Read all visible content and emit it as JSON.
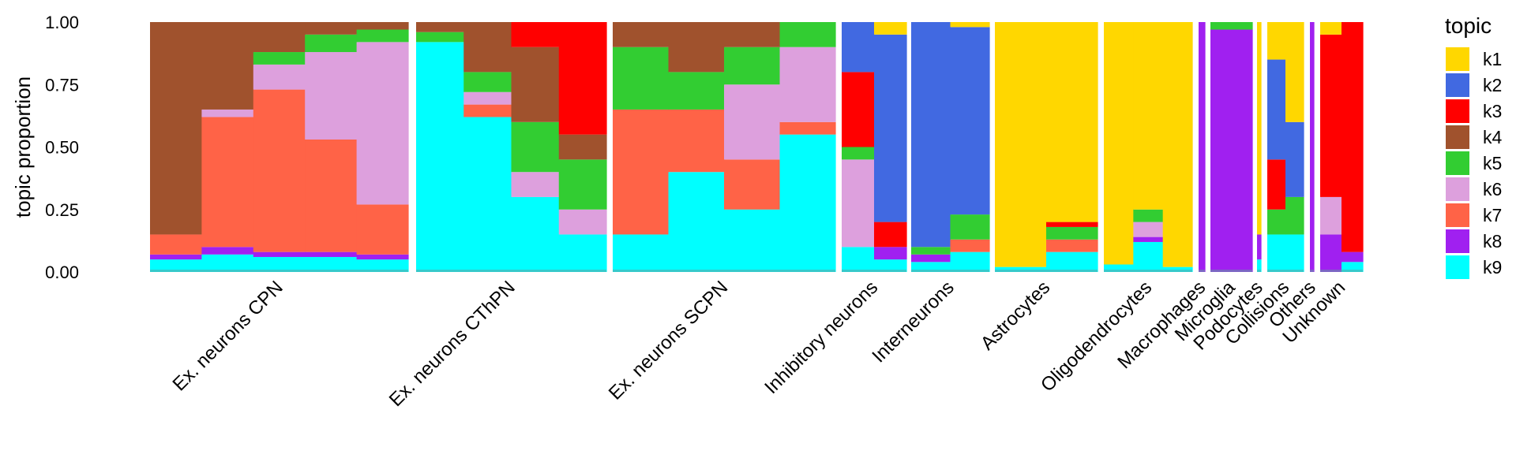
{
  "chart_data": {
    "type": "stacked-bar",
    "title": "",
    "xlabel": "",
    "ylabel": "topic proportion",
    "ylim": [
      0,
      1
    ],
    "yticks": [
      "0.00",
      "0.25",
      "0.50",
      "0.75",
      "1.00"
    ],
    "legend_title": "topic",
    "legend_position": "right",
    "series": [
      {
        "name": "k1",
        "color": "#FFD700"
      },
      {
        "name": "k2",
        "color": "#4169E1"
      },
      {
        "name": "k3",
        "color": "#FF0000"
      },
      {
        "name": "k4",
        "color": "#A0522D"
      },
      {
        "name": "k5",
        "color": "#32CD32"
      },
      {
        "name": "k6",
        "color": "#DDA0DD"
      },
      {
        "name": "k7",
        "color": "#FF6347"
      },
      {
        "name": "k8",
        "color": "#A020F0"
      },
      {
        "name": "k9",
        "color": "#00FFFF"
      }
    ],
    "groups": [
      {
        "label": "Ex. neurons CPN",
        "segments": [
          {
            "k4": 0.85,
            "k7": 0.08,
            "k9": 0.05,
            "k8": 0.02
          },
          {
            "k4": 0.35,
            "k7": 0.52,
            "k9": 0.07,
            "k8": 0.03,
            "k6": 0.03
          },
          {
            "k4": 0.12,
            "k7": 0.65,
            "k6": 0.1,
            "k5": 0.05,
            "k9": 0.06,
            "k8": 0.02
          },
          {
            "k4": 0.05,
            "k7": 0.45,
            "k6": 0.35,
            "k5": 0.07,
            "k9": 0.06,
            "k8": 0.02
          },
          {
            "k4": 0.03,
            "k7": 0.2,
            "k6": 0.65,
            "k5": 0.05,
            "k9": 0.05,
            "k8": 0.02
          }
        ]
      },
      {
        "label": "Ex. neurons CThPN",
        "segments": [
          {
            "k9": 0.92,
            "k4": 0.04,
            "k5": 0.04
          },
          {
            "k9": 0.62,
            "k4": 0.2,
            "k6": 0.05,
            "k5": 0.08,
            "k7": 0.05
          },
          {
            "k9": 0.3,
            "k4": 0.3,
            "k5": 0.2,
            "k6": 0.1,
            "k3": 0.1
          },
          {
            "k9": 0.15,
            "k3": 0.45,
            "k5": 0.2,
            "k4": 0.1,
            "k6": 0.1
          }
        ]
      },
      {
        "label": "Ex. neurons SCPN",
        "segments": [
          {
            "k9": 0.15,
            "k7": 0.5,
            "k5": 0.25,
            "k4": 0.1
          },
          {
            "k9": 0.4,
            "k7": 0.25,
            "k4": 0.2,
            "k5": 0.15
          },
          {
            "k9": 0.25,
            "k7": 0.2,
            "k6": 0.3,
            "k4": 0.1,
            "k5": 0.15
          },
          {
            "k9": 0.55,
            "k6": 0.3,
            "k5": 0.1,
            "k7": 0.05
          }
        ]
      },
      {
        "label": "Inhibitory neurons",
        "segments": [
          {
            "k9": 0.1,
            "k6": 0.35,
            "k3": 0.3,
            "k2": 0.2,
            "k5": 0.05
          },
          {
            "k2": 0.75,
            "k3": 0.1,
            "k8": 0.05,
            "k9": 0.05,
            "k1": 0.05
          }
        ]
      },
      {
        "label": "Interneurons",
        "segments": [
          {
            "k2": 0.9,
            "k9": 0.04,
            "k8": 0.03,
            "k5": 0.03
          },
          {
            "k2": 0.75,
            "k5": 0.1,
            "k9": 0.08,
            "k7": 0.05,
            "k1": 0.02
          }
        ]
      },
      {
        "label": "Astrocytes",
        "segments": [
          {
            "k1": 0.98,
            "k9": 0.02
          },
          {
            "k1": 0.8,
            "k9": 0.08,
            "k7": 0.05,
            "k5": 0.05,
            "k3": 0.02
          }
        ]
      },
      {
        "label": "Oligodendrocytes",
        "segments": [
          {
            "k1": 0.97,
            "k9": 0.03
          },
          {
            "k1": 0.75,
            "k9": 0.12,
            "k6": 0.06,
            "k5": 0.05,
            "k8": 0.02
          },
          {
            "k1": 0.98,
            "k9": 0.02
          }
        ]
      },
      {
        "label": "Macrophages",
        "segments": [
          {
            "k8": 1.0
          }
        ]
      },
      {
        "label": "Microglia",
        "segments": [
          {
            "k8": 0.97,
            "k5": 0.03
          }
        ]
      },
      {
        "label": "Podocytes",
        "segments": [
          {
            "k1": 0.85,
            "k8": 0.1,
            "k9": 0.05
          }
        ]
      },
      {
        "label": "Collisions",
        "segments": [
          {
            "k1": 0.15,
            "k2": 0.4,
            "k3": 0.2,
            "k9": 0.15,
            "k5": 0.1
          },
          {
            "k1": 0.4,
            "k2": 0.3,
            "k9": 0.15,
            "k5": 0.15
          }
        ]
      },
      {
        "label": "Others",
        "segments": [
          {
            "k8": 1.0
          }
        ]
      },
      {
        "label": "Unknown",
        "segments": [
          {
            "k1": 0.05,
            "k8": 0.15,
            "k6": 0.15,
            "k3": 0.65
          },
          {
            "k3": 0.92,
            "k9": 0.04,
            "k8": 0.04
          }
        ]
      }
    ]
  }
}
